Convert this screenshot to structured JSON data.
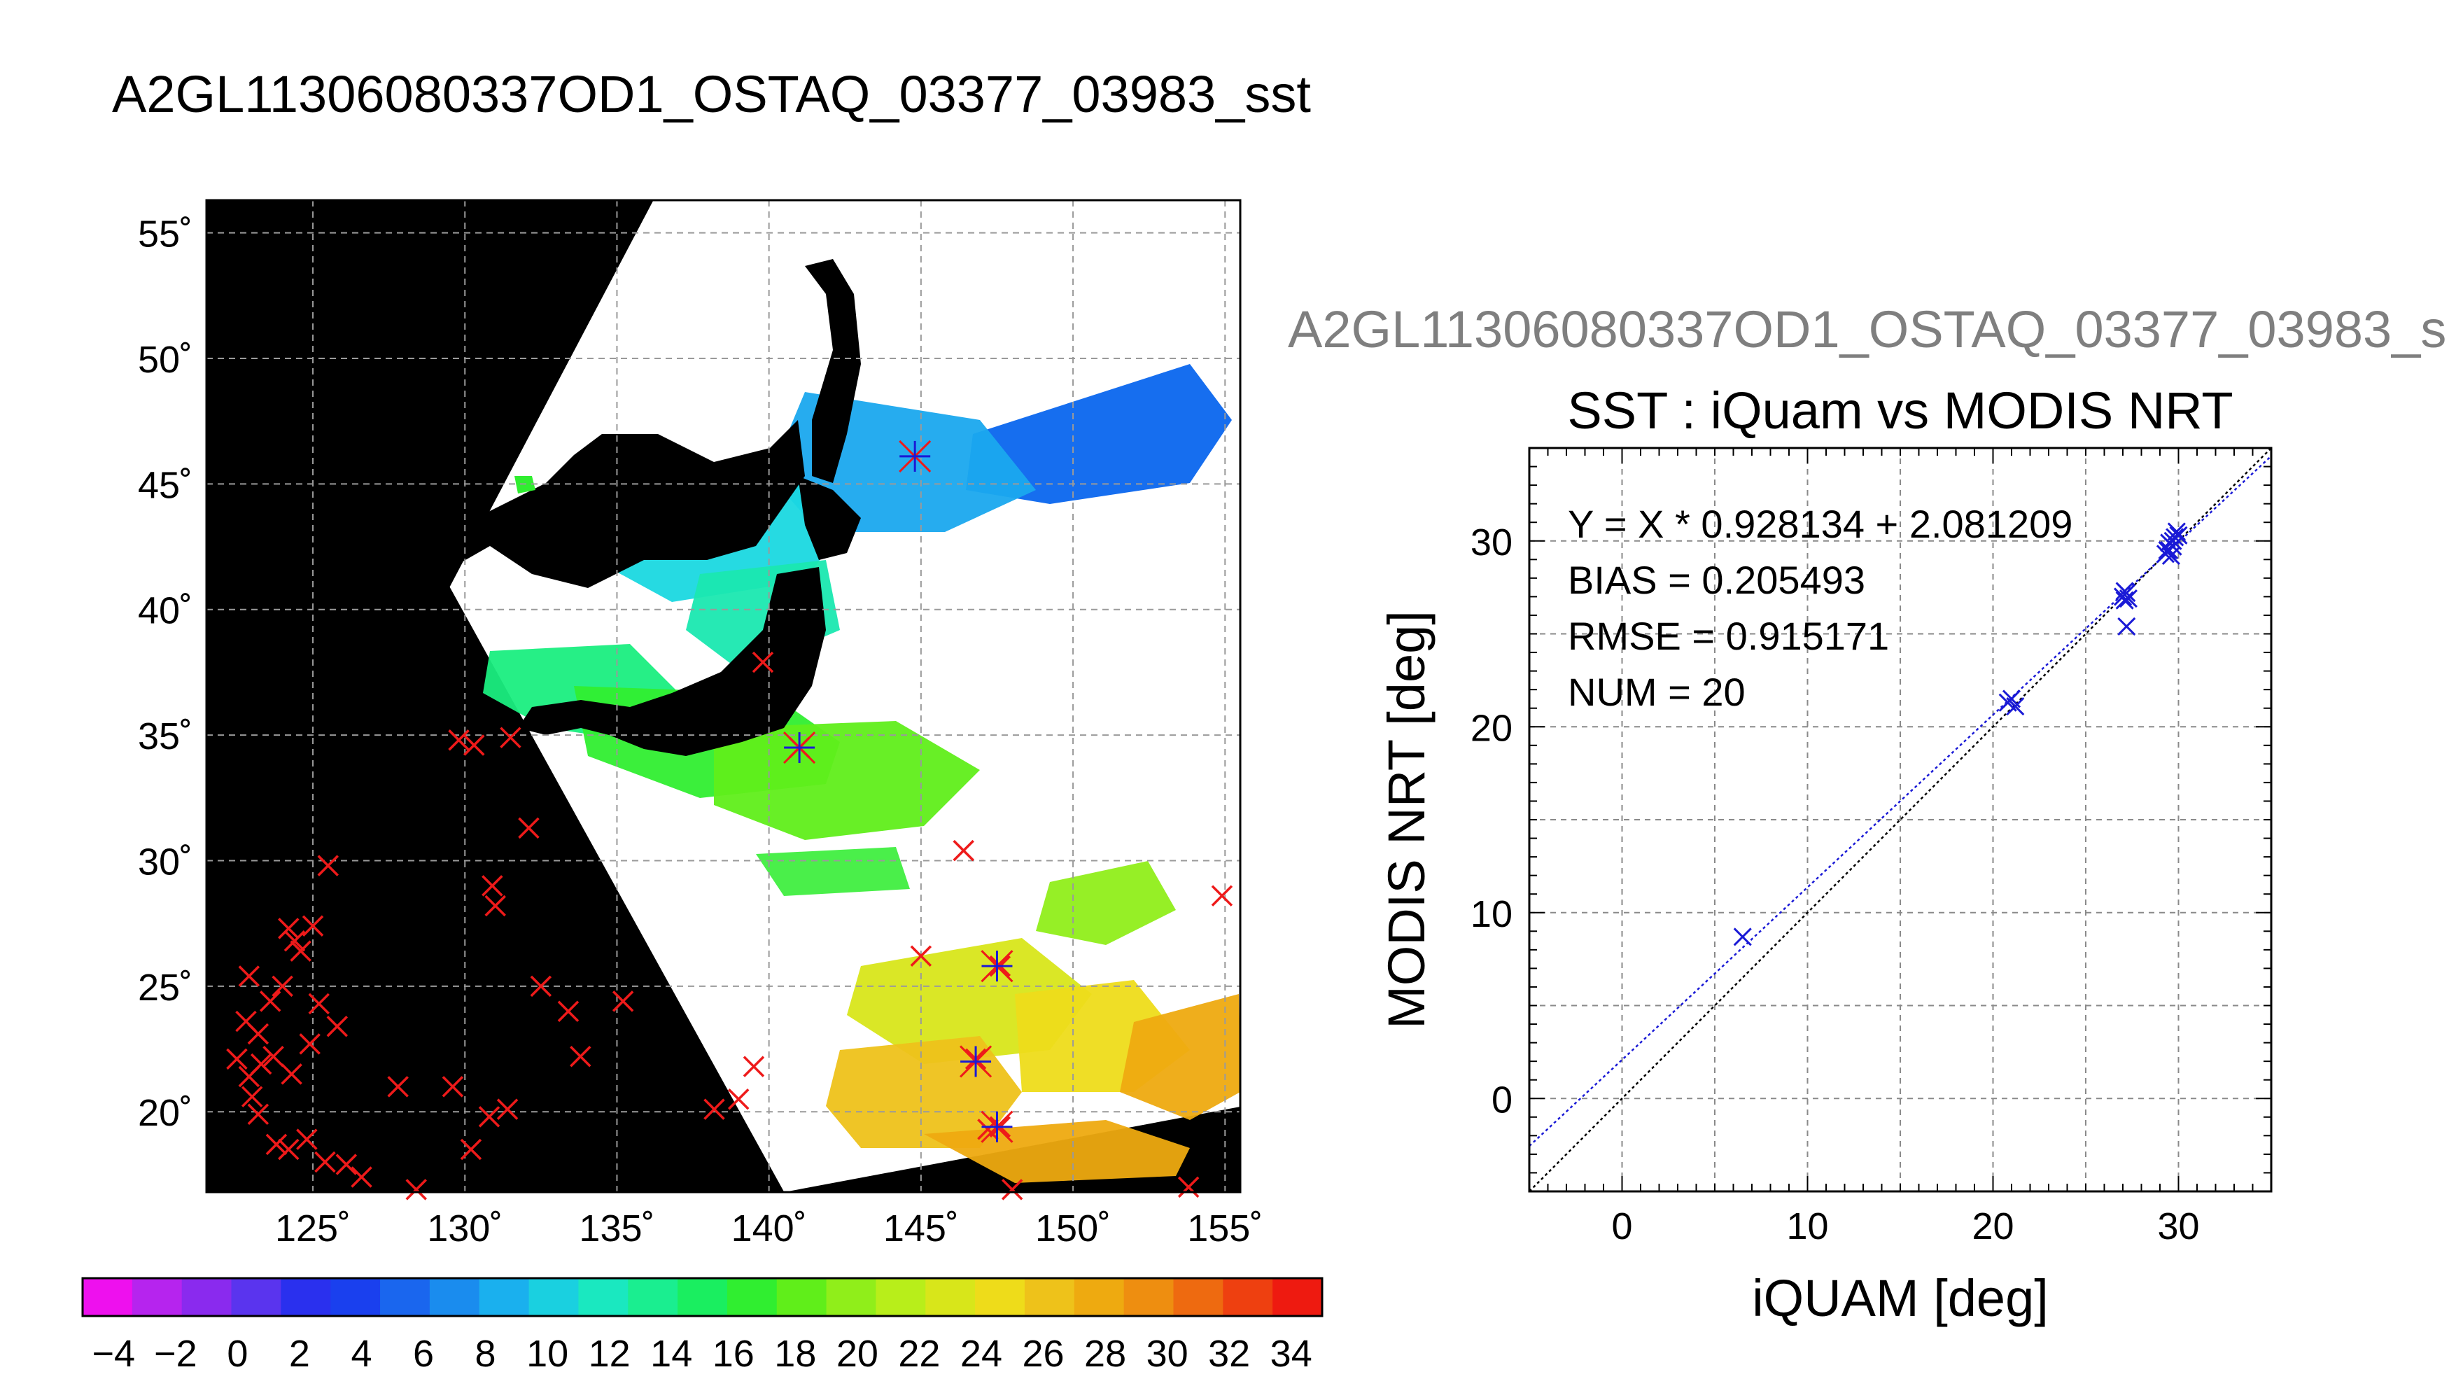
{
  "figure": {
    "main_title": "A2GL11306080337OD1_OSTAQ_03377_03983_sst",
    "side_title": "A2GL11306080337OD1_OSTAQ_03377_03983_s"
  },
  "chart_data": [
    {
      "type": "map",
      "lon_range": [
        121.5,
        155.5
      ],
      "lat_range": [
        16.8,
        56.3
      ],
      "lon_ticks": [
        125,
        130,
        135,
        140,
        145,
        150,
        155
      ],
      "lat_ticks": [
        20,
        25,
        30,
        35,
        40,
        45,
        50,
        55
      ],
      "lon_tick_labels": [
        "125˚",
        "130˚",
        "135˚",
        "140˚",
        "145˚",
        "150˚",
        "155˚"
      ],
      "lat_tick_labels": [
        "20˚",
        "25˚",
        "30˚",
        "35˚",
        "40˚",
        "45˚",
        "50˚",
        "55˚"
      ],
      "grid": true,
      "background": "#000000",
      "swath_corners_lonlat": [
        [
          136.2,
          56.3
        ],
        [
          155.5,
          56.3
        ],
        [
          155.5,
          20.2
        ],
        [
          140.5,
          16.8
        ],
        [
          129.5,
          40.9
        ]
      ],
      "in_situ_points": [
        [
          122.5,
          22.1
        ],
        [
          122.9,
          21.4
        ],
        [
          123.3,
          21.9
        ],
        [
          123.0,
          20.6
        ],
        [
          123.7,
          22.2
        ],
        [
          122.8,
          23.6
        ],
        [
          123.2,
          23.1
        ],
        [
          122.9,
          25.4
        ],
        [
          123.6,
          24.4
        ],
        [
          124.2,
          27.3
        ],
        [
          124.6,
          26.4
        ],
        [
          124.0,
          25.0
        ],
        [
          124.4,
          26.8
        ],
        [
          125.0,
          27.4
        ],
        [
          125.5,
          29.8
        ],
        [
          125.2,
          24.3
        ],
        [
          125.8,
          23.4
        ],
        [
          124.9,
          22.7
        ],
        [
          124.3,
          21.5
        ],
        [
          123.2,
          19.9
        ],
        [
          123.8,
          18.7
        ],
        [
          124.8,
          18.9
        ],
        [
          124.2,
          18.5
        ],
        [
          125.4,
          18.0
        ],
        [
          126.1,
          17.9
        ],
        [
          126.6,
          17.4
        ],
        [
          127.8,
          21.0
        ],
        [
          128.4,
          16.9
        ],
        [
          129.6,
          21.0
        ],
        [
          130.2,
          18.5
        ],
        [
          130.8,
          19.8
        ],
        [
          131.4,
          20.1
        ],
        [
          129.8,
          34.8
        ],
        [
          130.3,
          34.6
        ],
        [
          131.5,
          34.9
        ],
        [
          130.9,
          29.0
        ],
        [
          131.0,
          28.2
        ],
        [
          132.1,
          31.3
        ],
        [
          132.5,
          25.0
        ],
        [
          133.4,
          24.0
        ],
        [
          133.8,
          22.2
        ],
        [
          135.2,
          24.4
        ],
        [
          138.2,
          20.1
        ],
        [
          139.0,
          20.5
        ],
        [
          139.5,
          21.8
        ],
        [
          139.8,
          37.9
        ],
        [
          141.0,
          34.5
        ],
        [
          146.4,
          30.4
        ],
        [
          145.0,
          26.2
        ],
        [
          146.8,
          22.1
        ],
        [
          147.6,
          25.8
        ],
        [
          147.2,
          19.3
        ],
        [
          147.6,
          19.4
        ],
        [
          154.9,
          28.6
        ],
        [
          153.8,
          17.0
        ],
        [
          148.0,
          16.9
        ]
      ],
      "matched_points": [
        [
          144.8,
          46.1
        ],
        [
          141.0,
          34.5
        ],
        [
          147.5,
          25.8
        ],
        [
          146.8,
          22.0
        ],
        [
          147.5,
          19.4
        ]
      ]
    },
    {
      "type": "scatter",
      "title": "SST : iQuam vs MODIS NRT",
      "xlabel": "iQUAM [deg]",
      "ylabel": "MODIS NRT [deg]",
      "xlim": [
        -5,
        35
      ],
      "ylim": [
        -5,
        35
      ],
      "xticks": [
        0,
        10,
        20,
        30
      ],
      "yticks": [
        0,
        10,
        20,
        30
      ],
      "grid": true,
      "marker": "x",
      "marker_color": "#1a1ad6",
      "x": [
        6.5,
        20.8,
        21.0,
        27.0,
        27.1,
        27.2,
        27.3,
        27.2,
        29.3,
        29.5,
        29.5,
        29.7,
        29.8,
        29.9,
        30.0,
        29.6,
        29.4,
        29.7,
        27.1,
        21.2
      ],
      "y": [
        8.7,
        21.3,
        21.5,
        27.0,
        26.8,
        27.2,
        26.9,
        25.4,
        29.3,
        29.5,
        29.9,
        30.0,
        30.2,
        30.5,
        30.3,
        29.2,
        29.5,
        29.7,
        27.3,
        21.1
      ],
      "fit": {
        "slope": 0.928134,
        "intercept": 2.081209,
        "color": "#1a1ad6"
      },
      "identity_line_color": "#000000",
      "stats": [
        "Y = X * 0.928134 + 2.081209",
        "BIAS = 0.205493",
        "RMSE = 0.915171",
        "NUM = 20"
      ]
    },
    {
      "type": "colorbar",
      "min": -5,
      "max": 35,
      "tick_labels": [
        "−4",
        "−2",
        "0",
        "2",
        "4",
        "6",
        "8",
        "10",
        "12",
        "14",
        "16",
        "18",
        "20",
        "22",
        "24",
        "26",
        "28",
        "30",
        "32",
        "34"
      ],
      "tick_values": [
        -4,
        -2,
        0,
        2,
        4,
        6,
        8,
        10,
        12,
        14,
        16,
        18,
        20,
        22,
        24,
        26,
        28,
        30,
        32,
        34
      ],
      "segment_colors": [
        "#ee10ee",
        "#b624ee",
        "#8a2aee",
        "#5a34ee",
        "#2a30ee",
        "#1a40ee",
        "#1a66ee",
        "#1a8cee",
        "#1ab0ee",
        "#1ad0e0",
        "#1ae8c0",
        "#1aee90",
        "#1aee60",
        "#30ee30",
        "#60ee1a",
        "#90ee1a",
        "#b8ee1a",
        "#d8e61a",
        "#eedc1a",
        "#eec21a",
        "#eeaa10",
        "#ee8e10",
        "#ee6a10",
        "#ee4010",
        "#ee1a10"
      ]
    }
  ]
}
